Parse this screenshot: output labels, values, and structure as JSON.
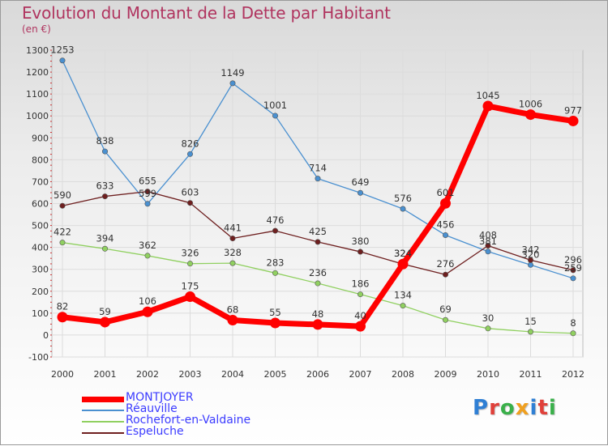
{
  "header": {
    "title": "Evolution du Montant de la Dette par Habitant",
    "subtitle": "(en €)"
  },
  "colors": {
    "title": "#b0345f",
    "legend_text": "#3c3cff",
    "grid": "#dcdcdc",
    "axis": "#888888"
  },
  "logo": {
    "letters": [
      "P",
      "r",
      "o",
      "x",
      "i",
      "t",
      "i"
    ],
    "colors": [
      "#2f7fd4",
      "#e0403a",
      "#3ab04a",
      "#f0a020",
      "#2f7fd4",
      "#e0403a",
      "#3ab04a"
    ]
  },
  "chart_data": {
    "type": "line",
    "title": "Evolution du Montant de la Dette par Habitant",
    "subtitle": "(en €)",
    "x": [
      "2000",
      "2001",
      "2002",
      "2003",
      "2004",
      "2005",
      "2006",
      "2007",
      "2008",
      "2009",
      "2010",
      "2011",
      "2012"
    ],
    "ylim": [
      -100,
      1300
    ],
    "yticks": [
      -100,
      0,
      100,
      200,
      300,
      400,
      500,
      600,
      700,
      800,
      900,
      1000,
      1100,
      1200,
      1300
    ],
    "grid": true,
    "legend": "bottom-left",
    "series": [
      {
        "name": "MONTJOYER",
        "color": "#ff0000",
        "emphasis": true,
        "values": [
          82,
          59,
          106,
          175,
          68,
          55,
          48,
          40,
          324,
          601,
          1045,
          1006,
          977
        ],
        "labels": [
          "82",
          "59",
          "106",
          "175",
          "68",
          "55",
          "48",
          "40",
          "324",
          "601",
          "1045",
          "1006",
          "977"
        ]
      },
      {
        "name": "Réauville",
        "color": "#4a90d0",
        "values": [
          1253,
          838,
          599,
          826,
          1149,
          1001,
          714,
          649,
          576,
          456,
          381,
          320,
          259
        ],
        "labels": [
          "1253",
          "838",
          "599",
          "826",
          "1149",
          "1001",
          "714",
          "649",
          "576",
          "456",
          "381",
          "320",
          "259"
        ]
      },
      {
        "name": "Rochefort-en-Valdaine",
        "color": "#90d060",
        "values": [
          422,
          394,
          362,
          326,
          328,
          283,
          236,
          186,
          134,
          69,
          30,
          15,
          8
        ],
        "labels": [
          "422",
          "394",
          "362",
          "326",
          "328",
          "283",
          "236",
          "186",
          "134",
          "69",
          "30",
          "15",
          "8"
        ]
      },
      {
        "name": "Espeluche",
        "color": "#6e1f1f",
        "values": [
          590,
          633,
          655,
          603,
          441,
          476,
          425,
          380,
          324,
          276,
          408,
          342,
          296
        ],
        "labels": [
          "590",
          "633",
          "655",
          "603",
          "441",
          "476",
          "425",
          "380",
          "324",
          "276",
          "408",
          "342",
          "296"
        ]
      }
    ]
  }
}
